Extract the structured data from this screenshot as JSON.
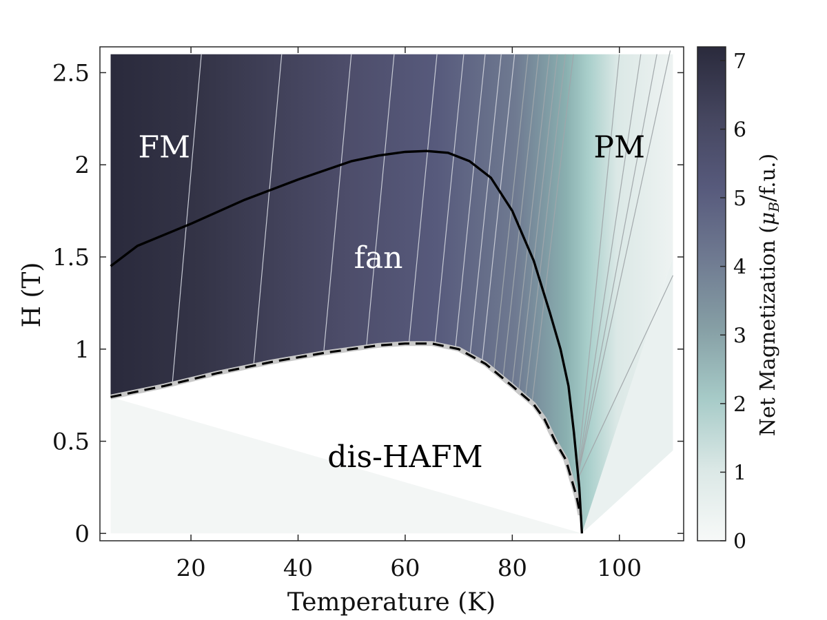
{
  "chart_data": {
    "type": "heatmap",
    "title": "",
    "xlabel": "Temperature (K)",
    "ylabel": "H (T)",
    "xlim": [
      3,
      112
    ],
    "ylim": [
      -0.04,
      2.64
    ],
    "x_ticks": [
      20,
      40,
      60,
      80,
      100
    ],
    "y_ticks": [
      0,
      0.5,
      1,
      1.5,
      2,
      2.5
    ],
    "x_tick_labels": [
      "20",
      "40",
      "60",
      "80",
      "100"
    ],
    "y_tick_labels": [
      "0",
      "0.5",
      "1",
      "1.5",
      "2",
      "2.5"
    ],
    "colorbar": {
      "label": "Net Magnetization (μB/f.u.)",
      "label_main": "Net Magnetization (",
      "label_mu": "μ",
      "label_sub": "B",
      "label_tail": "/f.u.)",
      "range": [
        0,
        7.2
      ],
      "ticks": [
        0,
        1,
        2,
        3,
        4,
        5,
        6,
        7
      ],
      "tick_labels": [
        "0",
        "1",
        "2",
        "3",
        "4",
        "5",
        "6",
        "7"
      ],
      "colors": [
        "#f7f9f8",
        "#dbe8e6",
        "#a7cbc8",
        "#869fa5",
        "#6f7a91",
        "#575a7c",
        "#45465f",
        "#2a2a3c"
      ]
    },
    "regions": [
      {
        "label": "FM",
        "T": 15,
        "H": 2.1,
        "color": "#ffffff"
      },
      {
        "label": "fan",
        "T": 55,
        "H": 1.5,
        "color": "#ffffff"
      },
      {
        "label": "PM",
        "T": 100,
        "H": 2.1,
        "color": "#000000"
      },
      {
        "label": "dis-HAFM",
        "T": 60,
        "H": 0.42,
        "color": "#000000"
      }
    ],
    "series": [
      {
        "style": "solid",
        "x": [
          5,
          10,
          20,
          30,
          40,
          50,
          55,
          60,
          64,
          68,
          72,
          76,
          80,
          84,
          87,
          89,
          90.5,
          91.5,
          92.5,
          93
        ],
        "y": [
          1.45,
          1.56,
          1.68,
          1.81,
          1.92,
          2.02,
          2.05,
          2.07,
          2.075,
          2.065,
          2.02,
          1.93,
          1.75,
          1.48,
          1.2,
          1.0,
          0.8,
          0.55,
          0.25,
          0.0
        ]
      },
      {
        "style": "dashed",
        "x": [
          5,
          15,
          25,
          35,
          45,
          55,
          60,
          65,
          70,
          75,
          80,
          84,
          86,
          88,
          90,
          91,
          92,
          92.7
        ],
        "y": [
          0.74,
          0.8,
          0.87,
          0.93,
          0.98,
          1.02,
          1.03,
          1.03,
          1.0,
          0.92,
          0.8,
          0.7,
          0.62,
          0.5,
          0.4,
          0.3,
          0.2,
          0.1
        ]
      }
    ]
  }
}
